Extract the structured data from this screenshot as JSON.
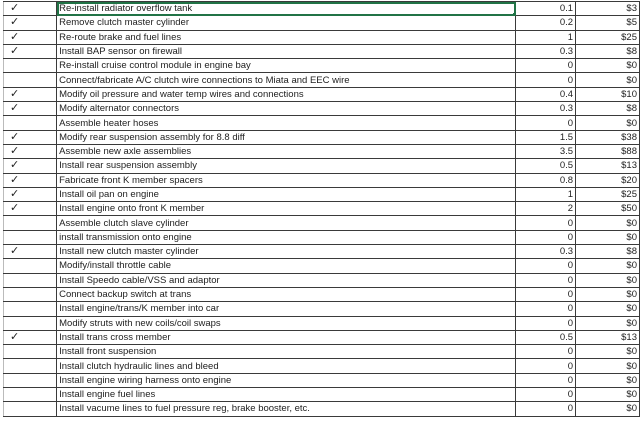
{
  "colors": {
    "selection": "#217346",
    "grid": "#3a3a3a"
  },
  "check_glyph": "✓",
  "rows": [
    {
      "done": true,
      "task": "Re-install radiator overflow tank",
      "hours": "0.1",
      "cost": "$3"
    },
    {
      "done": true,
      "task": "Remove clutch master cylinder",
      "hours": "0.2",
      "cost": "$5"
    },
    {
      "done": true,
      "task": "Re-route brake and fuel lines",
      "hours": "1",
      "cost": "$25"
    },
    {
      "done": true,
      "task": "Install BAP sensor on firewall",
      "hours": "0.3",
      "cost": "$8"
    },
    {
      "done": false,
      "task": "Re-install cruise control module in engine bay",
      "hours": "0",
      "cost": "$0"
    },
    {
      "done": false,
      "task": "Connect/fabricate A/C clutch wire connections to Miata and EEC wire",
      "hours": "0",
      "cost": "$0"
    },
    {
      "done": true,
      "task": "Modify oil pressure and water temp wires and connections",
      "hours": "0.4",
      "cost": "$10"
    },
    {
      "done": true,
      "task": "Modify alternator connectors",
      "hours": "0.3",
      "cost": "$8"
    },
    {
      "done": false,
      "task": "Assemble heater hoses",
      "hours": "0",
      "cost": "$0"
    },
    {
      "done": true,
      "task": "Modify rear suspension assembly for 8.8 diff",
      "hours": "1.5",
      "cost": "$38"
    },
    {
      "done": true,
      "task": "Assemble new axle assemblies",
      "hours": "3.5",
      "cost": "$88"
    },
    {
      "done": true,
      "task": "Install rear suspension assembly",
      "hours": "0.5",
      "cost": "$13"
    },
    {
      "done": true,
      "task": "Fabricate front K member spacers",
      "hours": "0.8",
      "cost": "$20"
    },
    {
      "done": true,
      "task": "Install oil pan on engine",
      "hours": "1",
      "cost": "$25"
    },
    {
      "done": true,
      "task": "Install engine onto front K member",
      "hours": "2",
      "cost": "$50"
    },
    {
      "done": false,
      "task": "Assemble clutch slave cylinder",
      "hours": "0",
      "cost": "$0"
    },
    {
      "done": false,
      "task": "install transmission onto engine",
      "hours": "0",
      "cost": "$0"
    },
    {
      "done": true,
      "task": "Install new clutch master cylinder",
      "hours": "0.3",
      "cost": "$8"
    },
    {
      "done": false,
      "task": "Modify/install throttle cable",
      "hours": "0",
      "cost": "$0"
    },
    {
      "done": false,
      "task": "Install Speedo cable/VSS and adaptor",
      "hours": "0",
      "cost": "$0"
    },
    {
      "done": false,
      "task": "Connect backup switch at trans",
      "hours": "0",
      "cost": "$0"
    },
    {
      "done": false,
      "task": "Install engine/trans/K member into car",
      "hours": "0",
      "cost": "$0"
    },
    {
      "done": false,
      "task": "Modify struts with new coils/coil swaps",
      "hours": "0",
      "cost": "$0"
    },
    {
      "done": true,
      "task": "Install trans cross member",
      "hours": "0.5",
      "cost": "$13"
    },
    {
      "done": false,
      "task": "Install front suspension",
      "hours": "0",
      "cost": "$0"
    },
    {
      "done": false,
      "task": "Install clutch hydraulic lines and bleed",
      "hours": "0",
      "cost": "$0"
    },
    {
      "done": false,
      "task": "Install engine wiring harness onto engine",
      "hours": "0",
      "cost": "$0"
    },
    {
      "done": false,
      "task": "Install engine fuel lines",
      "hours": "0",
      "cost": "$0"
    },
    {
      "done": false,
      "task": "Install vacume lines to fuel pressure reg, brake booster, etc.",
      "hours": "0",
      "cost": "$0"
    }
  ]
}
